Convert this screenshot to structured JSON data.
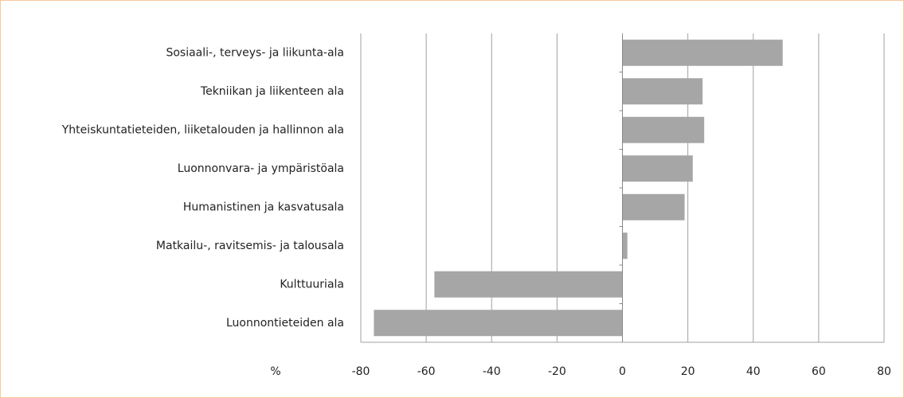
{
  "chart_data": {
    "type": "hbar",
    "x_label": "%",
    "categories": [
      "Sosiaali-, terveys- ja liikunta-ala",
      "Tekniikan ja liikenteen ala",
      "Yhteiskuntatieteiden, liiketalouden ja hallinnon ala",
      "Luonnonvara- ja ympäristöala",
      "Humanistinen ja kasvatusala",
      "Matkailu-, ravitsemis- ja talousala",
      "Kulttuuriala",
      "Luonnontieteiden ala"
    ],
    "values": [
      49,
      24.5,
      25,
      21.5,
      19,
      1.5,
      -57.5,
      -76
    ],
    "color": "#a6a6a6",
    "xlim": [
      -80,
      80
    ],
    "xticks": [
      -80,
      -60,
      -40,
      -20,
      0,
      20,
      40,
      60,
      80
    ],
    "grid": true
  }
}
